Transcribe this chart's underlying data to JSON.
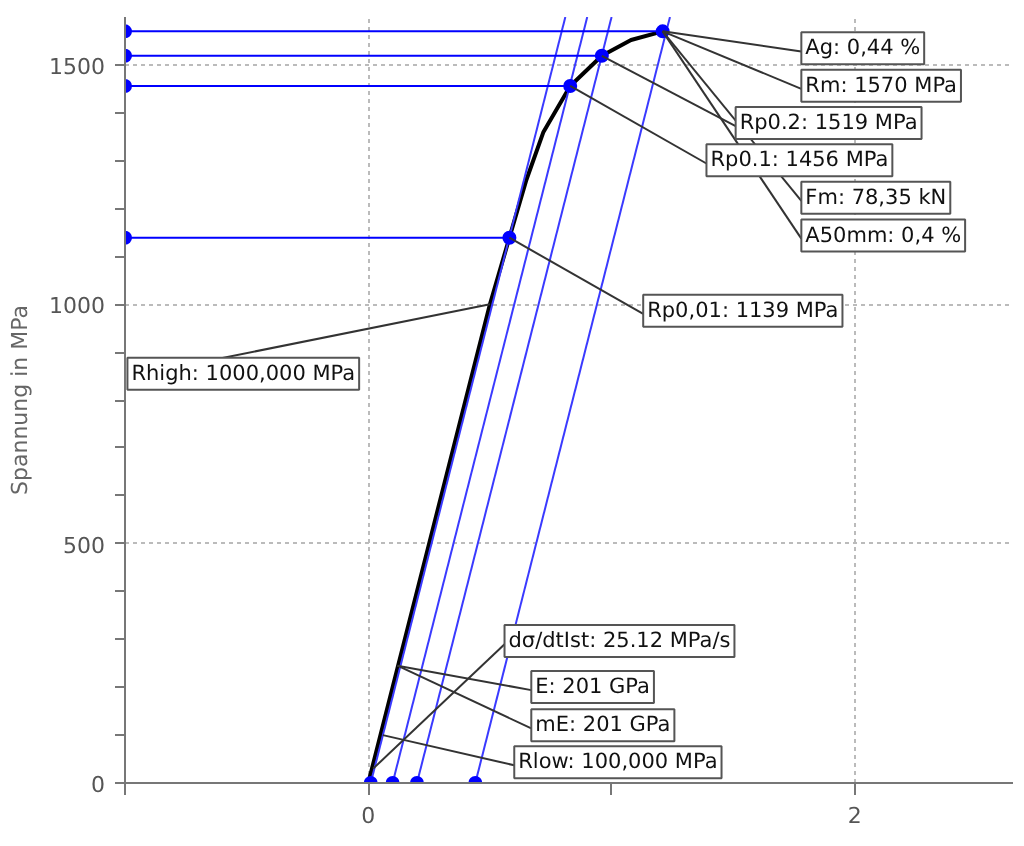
{
  "chart_data": {
    "type": "line",
    "ylabel": "Spannung in MPa",
    "xlim": [
      -1,
      2.65
    ],
    "ylim": [
      0,
      1600
    ],
    "xticks": [
      {
        "value": -1,
        "label": null
      },
      0,
      {
        "value": 1,
        "label": null
      },
      2
    ],
    "yticks": [
      0,
      {
        "value": 100,
        "label": null
      },
      {
        "value": 200,
        "label": null
      },
      {
        "value": 300,
        "label": null
      },
      {
        "value": 400,
        "label": null
      },
      500,
      {
        "value": 600,
        "label": null
      },
      {
        "value": 700,
        "label": null
      },
      {
        "value": 800,
        "label": null
      },
      {
        "value": 900,
        "label": null
      },
      1000,
      {
        "value": 1100,
        "label": null
      },
      {
        "value": 1200,
        "label": null
      },
      {
        "value": 1300,
        "label": null
      },
      {
        "value": 1400,
        "label": null
      },
      1500
    ],
    "grid": true,
    "line_style": "solid",
    "marker": "none",
    "series": [
      {
        "color": "#000000",
        "x": [
          0,
          0.1,
          0.25,
          0.5,
          0.58,
          0.65,
          0.72,
          0.83,
          0.96,
          1.08,
          1.21
        ],
        "values": [
          0,
          200,
          500,
          1000,
          1139,
          1260,
          1360,
          1456,
          1519,
          1552,
          1570
        ]
      },
      {
        "color": "#3a3aff",
        "x": [
          0.01,
          0.81
        ],
        "values": [
          0,
          1600
        ]
      },
      {
        "color": "#3a3aff",
        "x": [
          0.1,
          0.9
        ],
        "values": [
          0,
          1600
        ]
      },
      {
        "color": "#3a3aff",
        "x": [
          0.2,
          1.0
        ],
        "values": [
          0,
          1600
        ]
      },
      {
        "color": "#3a3aff",
        "x": [
          0.44,
          1.24
        ],
        "values": [
          0,
          1600
        ]
      },
      {
        "color": "#0000ff",
        "x": [
          -1,
          1.21
        ],
        "values": [
          1570,
          1570
        ],
        "marker": "circle"
      },
      {
        "color": "#0000ff",
        "x": [
          -1,
          0.96
        ],
        "values": [
          1519,
          1519
        ],
        "marker": "circle"
      },
      {
        "color": "#0000ff",
        "x": [
          -1,
          0.83
        ],
        "values": [
          1456,
          1456
        ],
        "marker": "circle"
      },
      {
        "color": "#0000ff",
        "x": [
          -1,
          0.58
        ],
        "values": [
          1139,
          1139
        ],
        "marker": "circle"
      },
      {
        "type": "scatter",
        "color": "#0000ff",
        "marker": "circle",
        "x": [
          0.01,
          0.1,
          0.2,
          0.44
        ],
        "values": [
          0,
          0,
          0,
          0
        ]
      }
    ],
    "annotations": [
      {
        "text": "Ag: 0,44 %",
        "x": 1.21,
        "y": 1570
      },
      {
        "text": "Rm: 1570 MPa",
        "x": 1.21,
        "y": 1570
      },
      {
        "text": "Rp0.2: 1519 MPa",
        "x": 0.96,
        "y": 1519
      },
      {
        "text": "Rp0.1: 1456 MPa",
        "x": 0.83,
        "y": 1456
      },
      {
        "text": "Fm: 78,35 kN",
        "x": 1.21,
        "y": 1570
      },
      {
        "text": "A50mm: 0,4 %",
        "x": 1.21,
        "y": 1570
      },
      {
        "text": "Rp0,01: 1139 MPa",
        "x": 0.58,
        "y": 1139
      },
      {
        "text": "Rhigh: 1000,000 MPa",
        "x": 0.5,
        "y": 1000
      },
      {
        "text": "dσ/dtIst: 25.12 MPa/s",
        "x": 0.02,
        "y": 30
      },
      {
        "text": "E: 201 GPa",
        "x": 0.12,
        "y": 245
      },
      {
        "text": "mE: 201 GPa",
        "x": 0.12,
        "y": 245
      },
      {
        "text": "Rlow: 100,000 MPa",
        "x": 0.06,
        "y": 100
      }
    ]
  }
}
